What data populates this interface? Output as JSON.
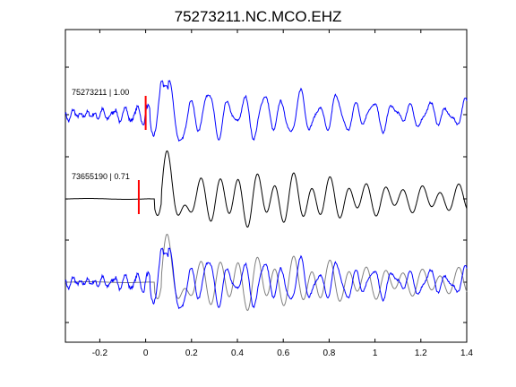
{
  "chart_data": {
    "type": "line",
    "title": "75273211.NC.MCO.EHZ",
    "xlabel": "",
    "ylabel": "",
    "xlim": [
      -0.35,
      1.4
    ],
    "x_ticks": [
      -0.2,
      0,
      0.2,
      0.4,
      0.6,
      0.8,
      1,
      1.2,
      1.4
    ],
    "x_tick_labels": [
      "-0.2",
      "0",
      "0.2",
      "0.4",
      "0.6",
      "0.8",
      "1",
      "1.2",
      "1.4"
    ],
    "grid": false,
    "traces": [
      {
        "label": "75273211 | 1.00",
        "color": "#0000ff",
        "pick_time": 0.0
      },
      {
        "label": "73655190 | 0.71",
        "color": "#000000",
        "pick_time": -0.03
      },
      {
        "label": "",
        "color": "overlay",
        "pick_time": null
      }
    ],
    "colors": {
      "trace_primary": "#0000ff",
      "trace_secondary": "#000000",
      "overlay_secondary": "#808080",
      "pick": "#ff0000"
    }
  }
}
